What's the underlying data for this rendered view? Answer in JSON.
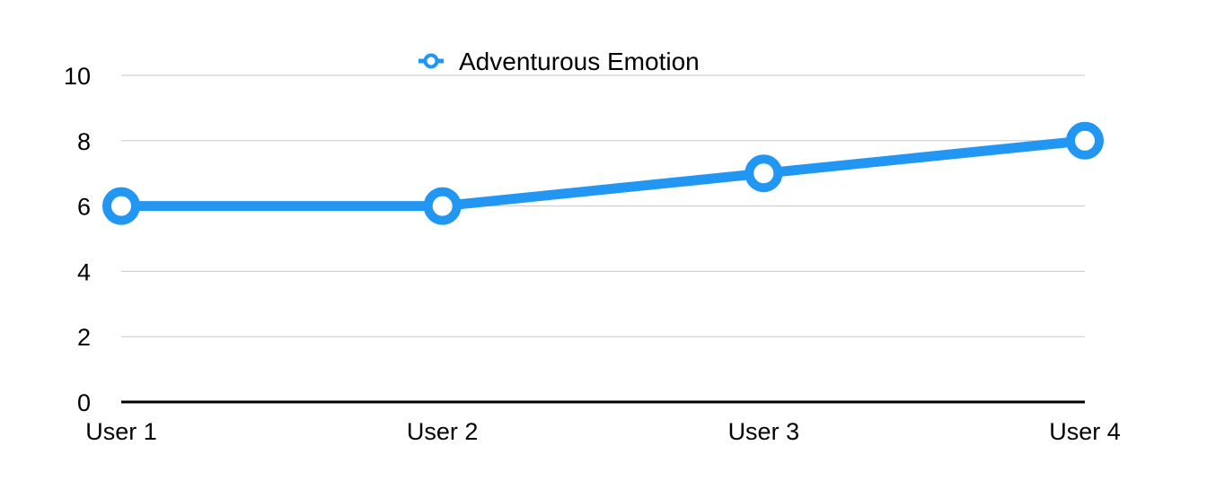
{
  "chart_data": {
    "type": "line",
    "categories": [
      "User 1",
      "User 2",
      "User 3",
      "User 4"
    ],
    "series": [
      {
        "name": "Adventurous Emotion",
        "values": [
          6,
          6,
          7,
          8
        ],
        "color": "#2196F3"
      }
    ],
    "yticks": [
      "0",
      "2",
      "4",
      "6",
      "8",
      "10"
    ],
    "ylim": [
      0,
      10
    ],
    "grid": true,
    "legend_position": "top-center",
    "marker": "circle-hollow"
  }
}
